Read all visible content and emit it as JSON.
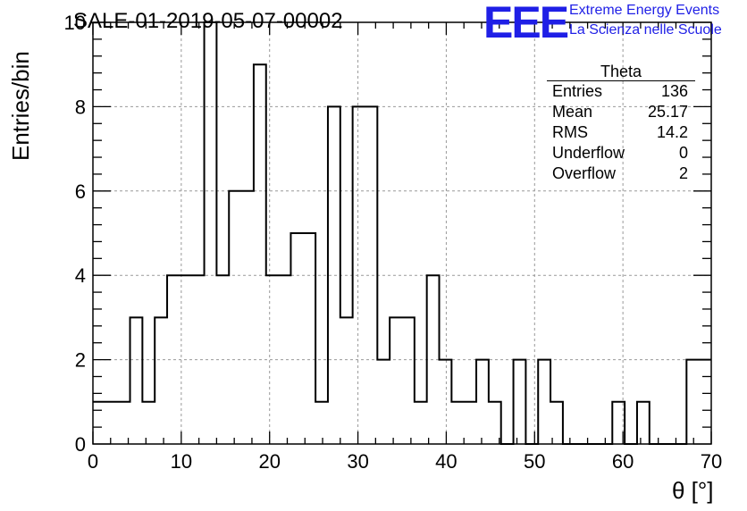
{
  "header": {
    "title": "SALE-01-2019-05-07-00002",
    "logo_text": "EEE",
    "logo_line1": "Extreme Energy Events",
    "logo_line2": "La Scienza nelle Scuole",
    "logo_color": "#1f1fe6"
  },
  "stats_box": {
    "title": "Theta",
    "rows": [
      {
        "label": "Entries",
        "value": "136"
      },
      {
        "label": "Mean",
        "value": "25.17"
      },
      {
        "label": "RMS",
        "value": "14.2"
      },
      {
        "label": "Underflow",
        "value": "0"
      },
      {
        "label": "Overflow",
        "value": "2"
      }
    ]
  },
  "chart_data": {
    "type": "histogram",
    "title": "SALE-01-2019-05-07-00002",
    "xlabel": "θ [°]",
    "ylabel": "Entries/bin",
    "xlim": [
      0,
      70
    ],
    "ylim": [
      0,
      10
    ],
    "grid": true,
    "x_ticks": [
      0,
      10,
      20,
      30,
      40,
      50,
      60,
      70
    ],
    "y_ticks": [
      0,
      2,
      4,
      6,
      8,
      10
    ],
    "bin_edges_start": 0,
    "bin_width": 1.4,
    "counts": [
      1,
      1,
      1,
      3,
      1,
      3,
      4,
      4,
      4,
      10,
      4,
      6,
      6,
      9,
      4,
      4,
      5,
      5,
      1,
      8,
      3,
      8,
      8,
      2,
      3,
      3,
      1,
      4,
      2,
      1,
      1,
      2,
      1,
      0,
      2,
      0,
      2,
      1,
      0,
      0,
      0,
      0,
      1,
      0,
      1,
      0,
      0,
      0,
      2,
      2
    ]
  }
}
